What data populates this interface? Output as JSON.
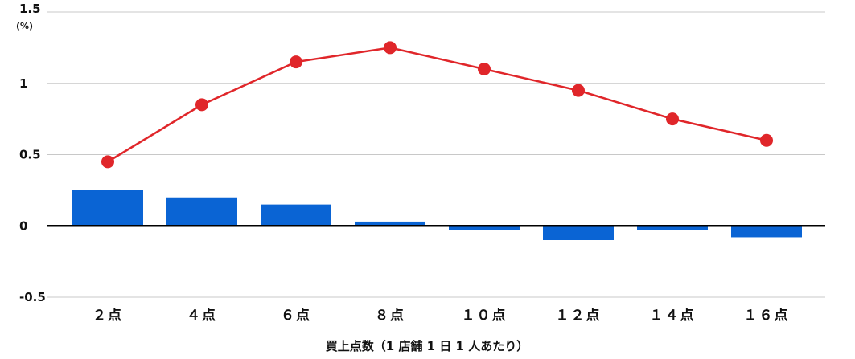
{
  "chart_data": {
    "type": "bar+line",
    "categories": [
      "２点",
      "４点",
      "６点",
      "８点",
      "１０点",
      "１２点",
      "１４点",
      "１６点"
    ],
    "series": [
      {
        "type": "bar",
        "values": [
          0.25,
          0.2,
          0.15,
          0.03,
          -0.03,
          -0.1,
          -0.03,
          -0.08
        ],
        "color": "#0a64d4"
      },
      {
        "type": "line",
        "values": [
          0.45,
          0.85,
          1.15,
          1.25,
          1.1,
          0.95,
          0.75,
          0.6
        ],
        "color": "#e0262a"
      }
    ],
    "yticks": [
      "1.5",
      "1",
      "0.5",
      "0",
      "-0.5"
    ],
    "ytick_values": [
      1.5,
      1,
      0.5,
      0,
      -0.5
    ],
    "yunit": "(%)",
    "xlabel": "買上点数（1 店舗 1 日 1 人あたり）",
    "ylim": [
      -0.5,
      1.5
    ],
    "grid": true
  }
}
